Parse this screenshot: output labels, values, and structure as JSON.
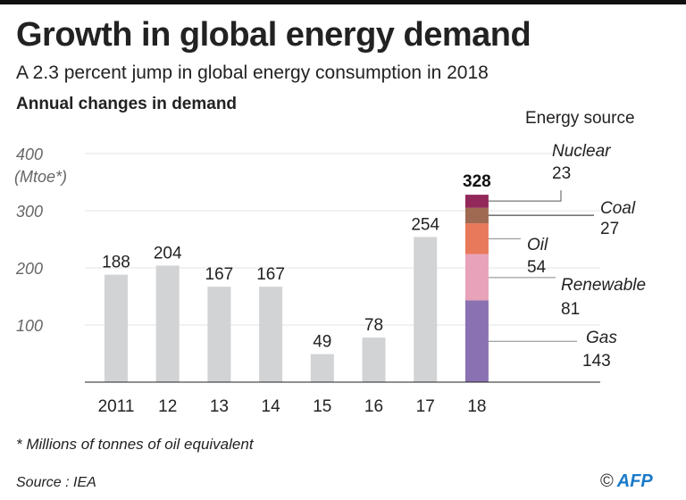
{
  "title": "Growth in global energy demand",
  "subtitle": "A 2.3 percent jump in global energy consumption in 2018",
  "footnote": "* Millions of tonnes of oil equivalent",
  "source": "Source : IEA",
  "credit": {
    "symbol": "©",
    "name": "AFP"
  },
  "chart_data": {
    "type": "bar",
    "title": "Annual changes in demand",
    "ylabel": "(Mtoe*)",
    "ylim": [
      0,
      400
    ],
    "yticks": [
      100,
      200,
      300,
      400
    ],
    "grid": true,
    "categories": [
      "2011",
      "12",
      "13",
      "14",
      "15",
      "16",
      "17",
      "18"
    ],
    "values": [
      188,
      204,
      167,
      167,
      49,
      78,
      254,
      328
    ],
    "stacked_last": {
      "legend_title": "Energy source",
      "total": 328,
      "segments": [
        {
          "name": "Gas",
          "value": 143,
          "color": "#8a72b2"
        },
        {
          "name": "Renewable",
          "value": 81,
          "color": "#e8a2ba"
        },
        {
          "name": "Oil",
          "value": 54,
          "color": "#e8795a"
        },
        {
          "name": "Coal",
          "value": 27,
          "color": "#a06a52"
        },
        {
          "name": "Nuclear",
          "value": 23,
          "color": "#93295a"
        }
      ]
    },
    "bar_color": "#d2d3d5"
  }
}
